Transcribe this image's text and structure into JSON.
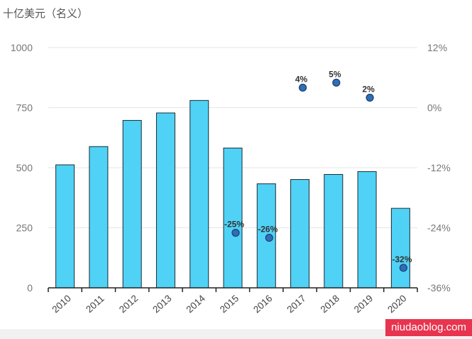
{
  "unit_label": "十亿美元（名义）",
  "watermark": "niudaoblog.com",
  "colors": {
    "bar_fill": "#4fd2f5",
    "bar_stroke": "#1b2a33",
    "dot_fill": "#2f6db8",
    "dot_stroke": "#1c3f6e",
    "grid": "#e6e6e6",
    "watermark_bg": "#e8344e"
  },
  "chart_data": {
    "type": "bar",
    "categories": [
      "2010",
      "2011",
      "2012",
      "2013",
      "2014",
      "2015",
      "2016",
      "2017",
      "2018",
      "2019",
      "2020"
    ],
    "series": [
      {
        "axis": "left",
        "type": "bar",
        "values": [
          512,
          588,
          697,
          728,
          780,
          582,
          433,
          451,
          472,
          484,
          331
        ]
      },
      {
        "axis": "right",
        "type": "scatter",
        "values": [
          null,
          null,
          null,
          null,
          null,
          -25,
          -26,
          4,
          5,
          2,
          -32
        ],
        "labels": [
          "",
          "",
          "",
          "",
          "",
          "-25%",
          "-26%",
          "4%",
          "5%",
          "2%",
          "-32%"
        ]
      }
    ],
    "left_axis": {
      "ticks": [
        "0",
        "250",
        "500",
        "750",
        "1000"
      ],
      "ylim": [
        0,
        1000
      ]
    },
    "right_axis": {
      "ticks": [
        "-36%",
        "-24%",
        "-12%",
        "0%",
        "12%"
      ],
      "ylim": [
        -36,
        12
      ]
    },
    "grid": true,
    "legend": "none",
    "title": "",
    "xlabel": "",
    "ylabel": ""
  }
}
